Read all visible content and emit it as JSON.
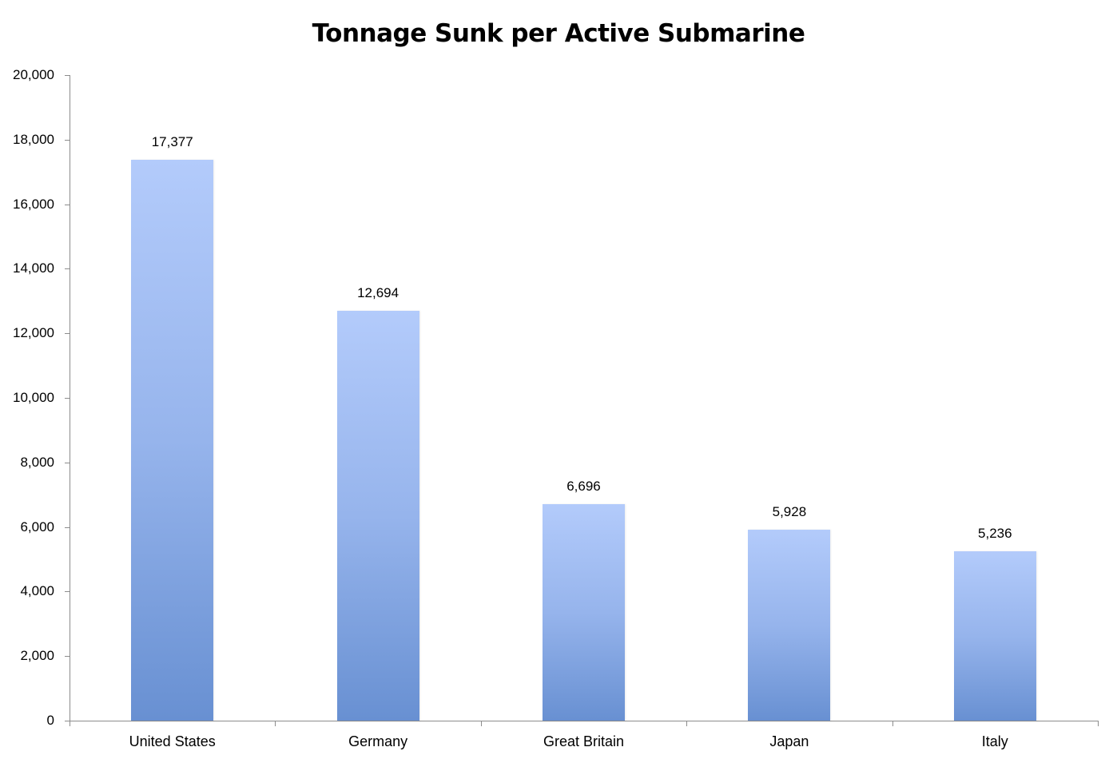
{
  "chart_data": {
    "type": "bar",
    "title": "Tonnage Sunk per Active Submarine",
    "xlabel": "",
    "ylabel": "",
    "categories": [
      "United States",
      "Germany",
      "Great Britain",
      "Japan",
      "Italy"
    ],
    "values": [
      17377,
      12694,
      6696,
      5928,
      5236
    ],
    "value_labels": [
      "17,377",
      "12,694",
      "6,696",
      "5,928",
      "5,236"
    ],
    "ylim": [
      0,
      20000
    ],
    "yticks": [
      "0",
      "2,000",
      "4,000",
      "6,000",
      "8,000",
      "10,000",
      "12,000",
      "14,000",
      "16,000",
      "18,000",
      "20,000"
    ],
    "grid": false,
    "legend": null,
    "bar_color_top": "#b3cbfb",
    "bar_color_bottom": "#6890d2"
  }
}
